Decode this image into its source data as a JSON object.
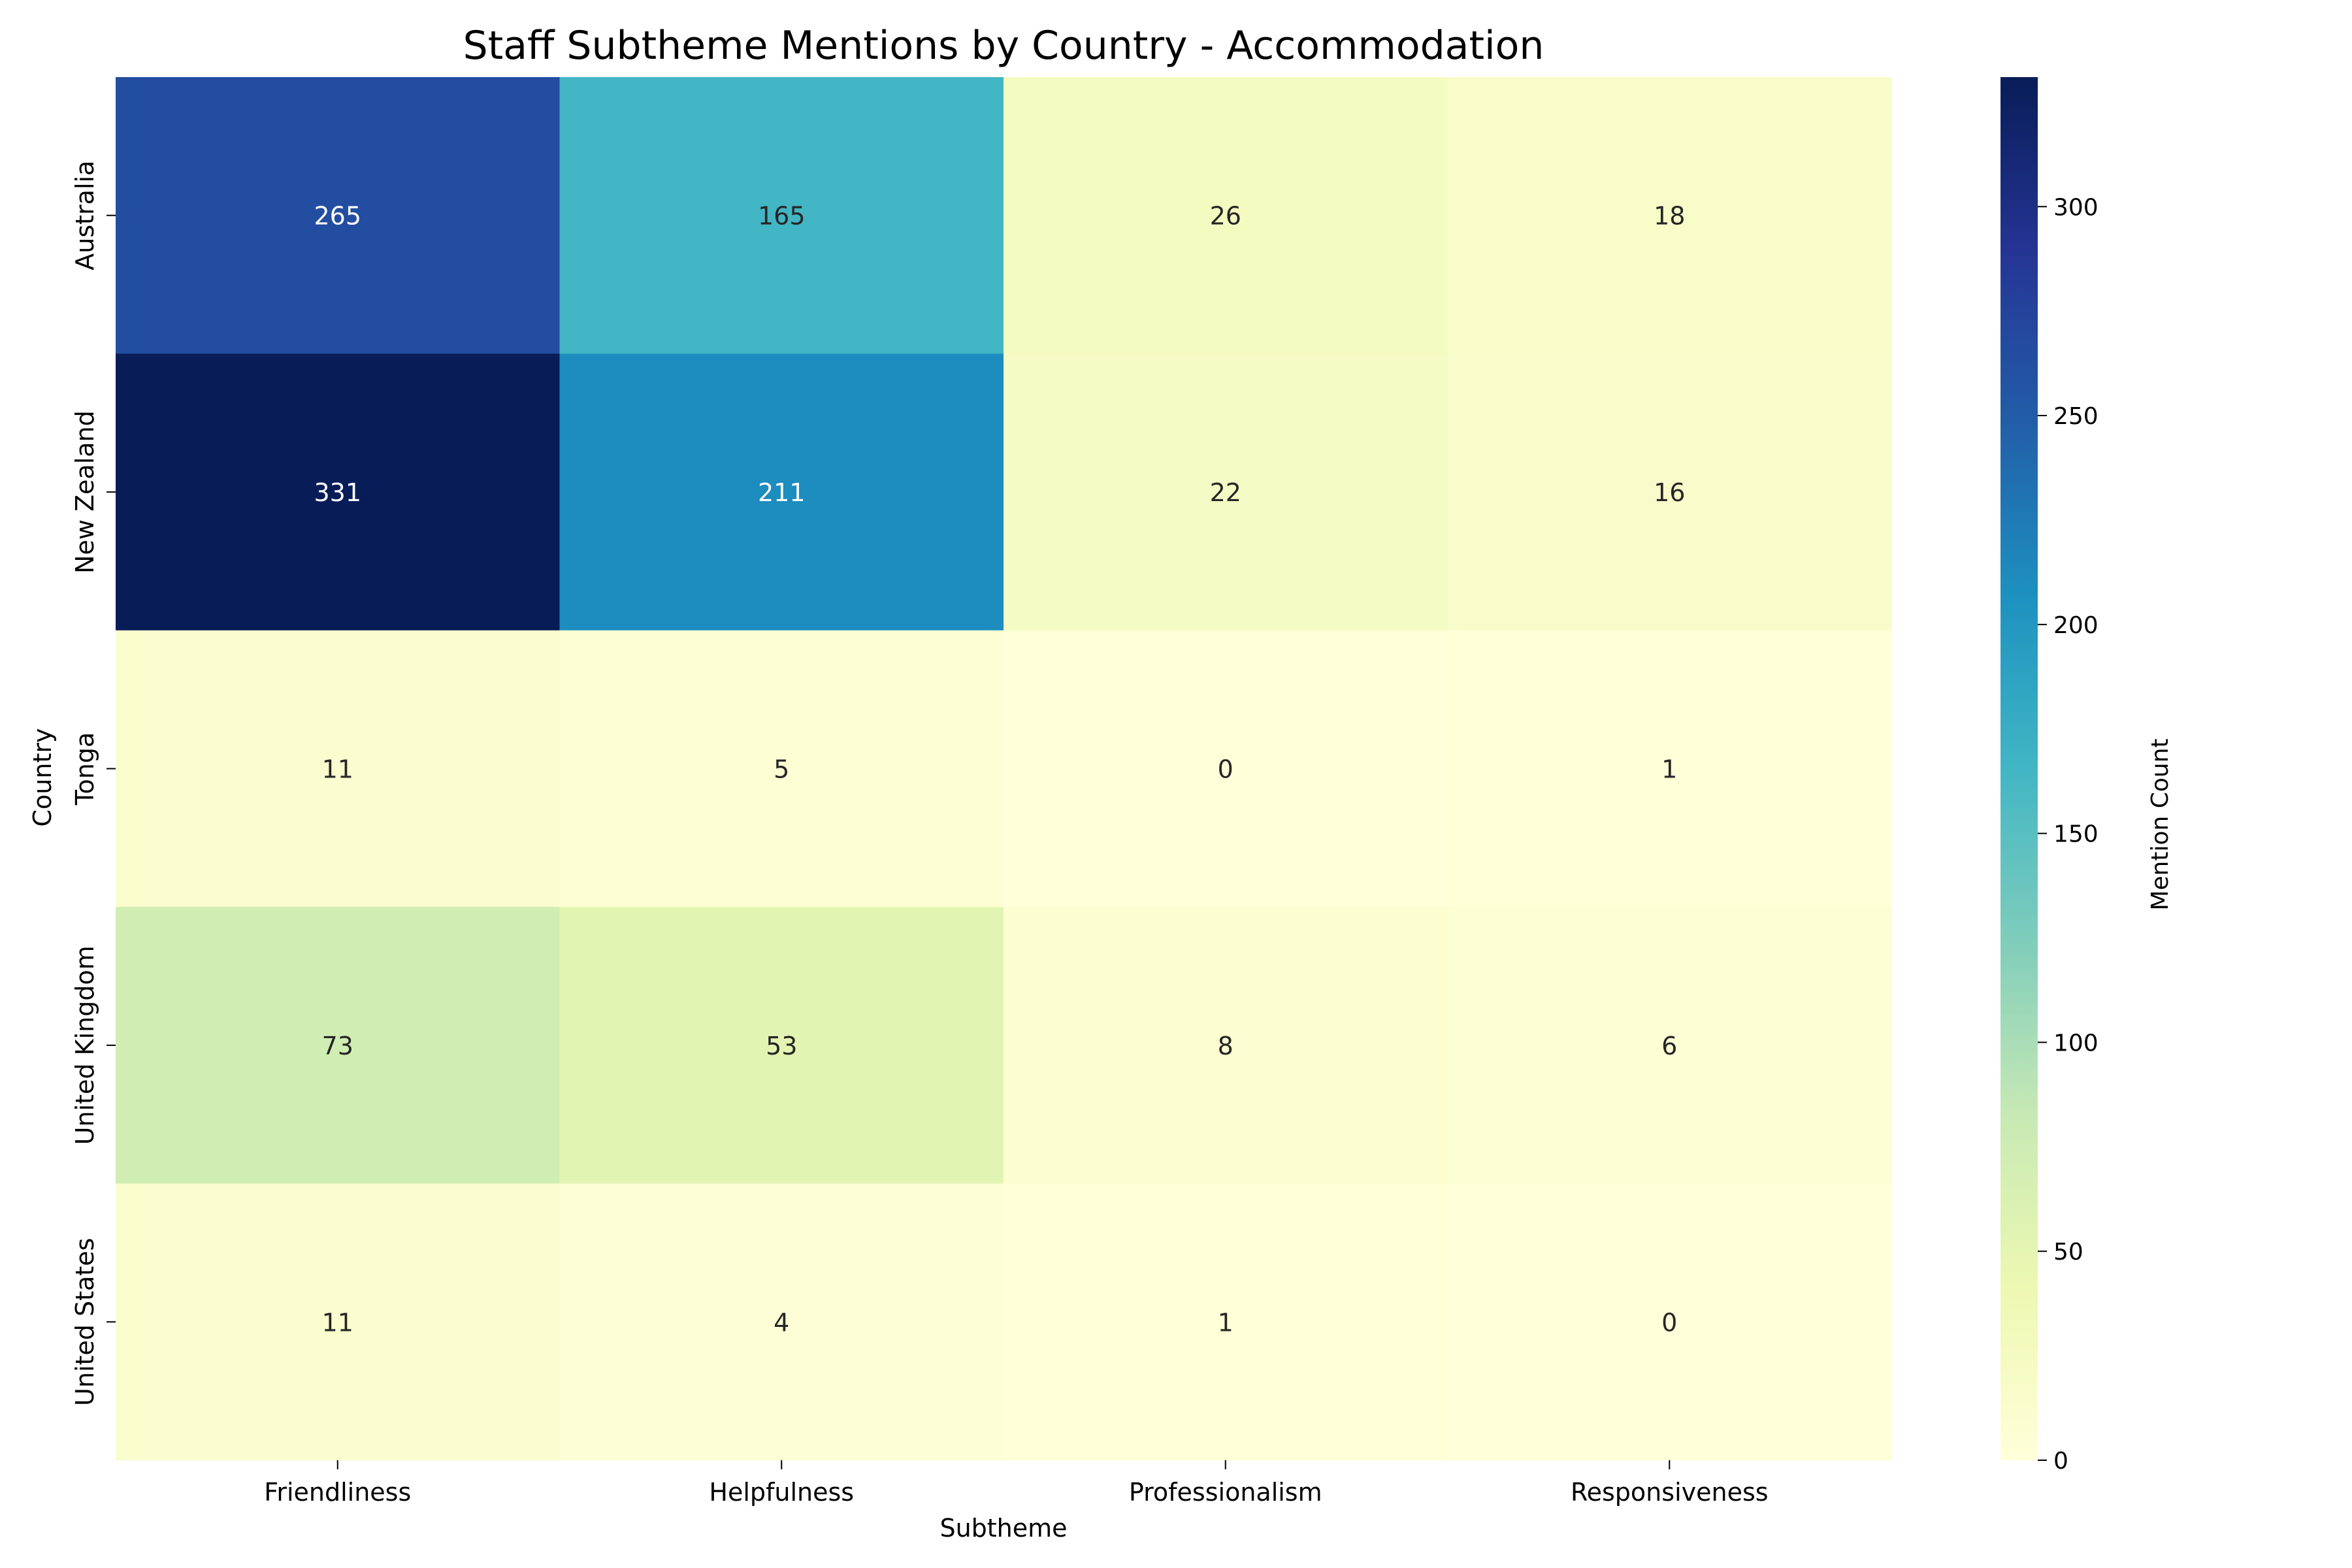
{
  "chart_data": {
    "type": "heatmap",
    "title": "Staff Subtheme Mentions by Country - Accommodation",
    "xlabel": "Subtheme",
    "ylabel": "Country",
    "x_categories": [
      "Friendliness",
      "Helpfulness",
      "Professionalism",
      "Responsiveness"
    ],
    "y_categories": [
      "Australia",
      "New Zealand",
      "Tonga",
      "United Kingdom",
      "United States"
    ],
    "values": [
      [
        265,
        165,
        26,
        18
      ],
      [
        331,
        211,
        22,
        16
      ],
      [
        11,
        5,
        0,
        1
      ],
      [
        73,
        53,
        8,
        6
      ],
      [
        11,
        4,
        1,
        0
      ]
    ],
    "colorbar": {
      "label": "Mention Count",
      "range": [
        0,
        331
      ],
      "ticks": [
        0,
        50,
        100,
        150,
        200,
        250,
        300
      ]
    },
    "colormap": "YlGnBu",
    "colormap_stops": [
      "#ffffd9",
      "#edf8b1",
      "#c7e9b4",
      "#7fcdbb",
      "#41b6c4",
      "#1d91c0",
      "#225ea8",
      "#253494",
      "#081d58"
    ]
  }
}
